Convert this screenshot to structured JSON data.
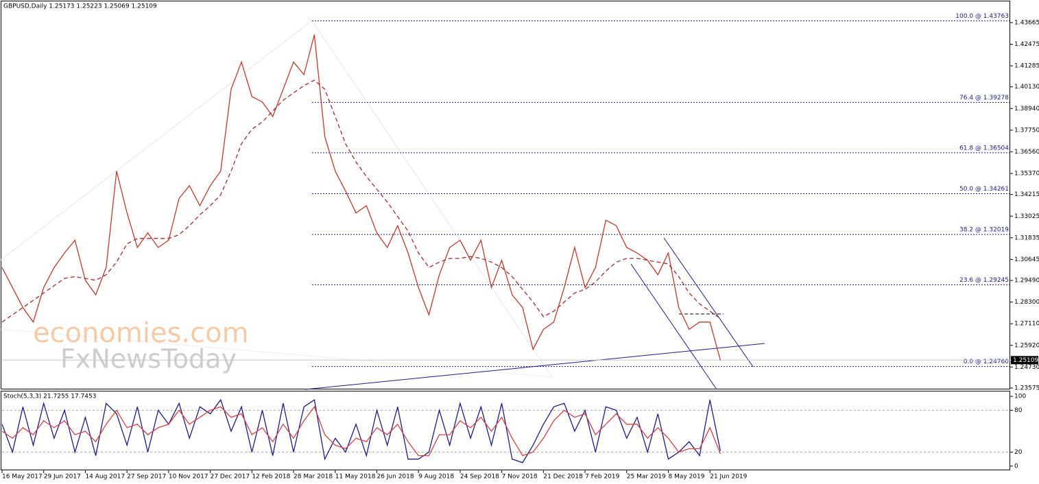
{
  "chart_data": [
    {
      "type": "line",
      "title": "GBPUSD,Daily  1.25173 1.25223 1.25069 1.25109",
      "categories": [
        "16 May 2017",
        null,
        null,
        null,
        "29 Jun 2017",
        null,
        null,
        null,
        "14 Aug 2017",
        null,
        null,
        null,
        "27 Sep 2017",
        null,
        null,
        null,
        "10 Nov 2017",
        null,
        null,
        null,
        "27 Dec 2017",
        null,
        null,
        null,
        "12 Feb 2018",
        null,
        null,
        null,
        "28 Mar 2018",
        null,
        null,
        null,
        "11 May 2018",
        null,
        null,
        null,
        "26 Jun 2018",
        null,
        null,
        null,
        "9 Aug 2018",
        null,
        null,
        null,
        "24 Sep 2018",
        null,
        null,
        null,
        "7 Nov 2018",
        null,
        null,
        null,
        "21 Dec 2018",
        null,
        null,
        null,
        "7 Feb 2019",
        null,
        null,
        null,
        "25 Mar 2019",
        null,
        null,
        null,
        "8 May 2019",
        null,
        null,
        null,
        "21 Jun 2019",
        null
      ],
      "series": [
        {
          "color": "#c0392b",
          "values": [
            1.302,
            1.291,
            1.28,
            1.272,
            1.291,
            1.302,
            1.31,
            1.317,
            1.295,
            1.287,
            1.302,
            1.355,
            1.332,
            1.313,
            1.321,
            1.313,
            1.317,
            1.34,
            1.347,
            1.336,
            1.347,
            1.355,
            1.4,
            1.415,
            1.396,
            1.393,
            1.385,
            1.4,
            1.415,
            1.408,
            1.43,
            1.374,
            1.355,
            1.344,
            1.332,
            1.336,
            1.321,
            1.313,
            1.325,
            1.31,
            1.291,
            1.276,
            1.298,
            1.313,
            1.317,
            1.306,
            1.317,
            1.291,
            1.306,
            1.287,
            1.28,
            1.257,
            1.268,
            1.272,
            1.291,
            1.313,
            1.291,
            1.302,
            1.328,
            1.325,
            1.313,
            1.31,
            1.306,
            1.298,
            1.31,
            1.28,
            1.268,
            1.272,
            1.272,
            1.25109
          ]
        },
        {
          "color": "#a52a2a",
          "dashed": true,
          "values": [
            1.272,
            1.276,
            1.28,
            1.284,
            1.288,
            1.292,
            1.296,
            1.297,
            1.296,
            1.295,
            1.298,
            1.305,
            1.315,
            1.318,
            1.318,
            1.318,
            1.318,
            1.32,
            1.325,
            1.331,
            1.336,
            1.342,
            1.355,
            1.37,
            1.378,
            1.382,
            1.388,
            1.394,
            1.398,
            1.402,
            1.405,
            1.4,
            1.385,
            1.37,
            1.36,
            1.352,
            1.345,
            1.338,
            1.33,
            1.322,
            1.31,
            1.302,
            1.305,
            1.307,
            1.307,
            1.308,
            1.307,
            1.305,
            1.302,
            1.297,
            1.29,
            1.283,
            1.275,
            1.278,
            1.283,
            1.288,
            1.29,
            1.294,
            1.3,
            1.305,
            1.307,
            1.307,
            1.306,
            1.305,
            1.304,
            1.297,
            1.288,
            1.282,
            1.278,
            1.274
          ]
        }
      ],
      "ylim": [
        1.235,
        1.4483
      ],
      "yticks": [
        1.43665,
        1.42475,
        1.41285,
        {
          "value": 1.4013,
          "label": "1.40130"
        },
        {
          "value": 1.3894,
          "label": "1.38940"
        },
        {
          "value": 1.3775,
          "label": "1.37750"
        },
        {
          "value": 1.3656,
          "label": "1.36560"
        },
        {
          "value": 1.3537,
          "label": "1.35370"
        },
        1.34215,
        1.33025,
        1.31835,
        1.30645,
        {
          "value": 1.2949,
          "label": "1.29490"
        },
        {
          "value": 1.283,
          "label": "1.28300"
        },
        {
          "value": 1.2711,
          "label": "1.27110"
        },
        {
          "value": 1.2592,
          "label": "1.25920"
        },
        {
          "value": 1.2473,
          "label": "1.24730"
        },
        1.23575
      ],
      "fib_levels": [
        {
          "value": 1.43763,
          "label": "100.0 @ 1.43763"
        },
        {
          "value": 1.39278,
          "label": "76.4 @ 1.39278"
        },
        {
          "value": 1.36504,
          "label": "61.8 @ 1.36504"
        },
        {
          "value": 1.34261,
          "label": "50.0 @ 1.34261"
        },
        {
          "value": 1.32019,
          "label": "38.2 @ 1.32019"
        },
        {
          "value": 1.29245,
          "label": "23.6 @ 1.29245"
        },
        {
          "value": 1.2476,
          "label": "0.0 @ 1.24760"
        }
      ],
      "fib_color": "#1a1a8c",
      "watermarks": [
        "economies.com",
        "FxNewsToday"
      ]
    },
    {
      "type": "line",
      "title": "Stoch(5,3,3) 21.7255 17.7453",
      "series": [
        {
          "color": "#1a1a8c",
          "values": [
            60,
            20,
            85,
            30,
            90,
            40,
            80,
            20,
            70,
            15,
            90,
            75,
            30,
            85,
            20,
            80,
            60,
            90,
            40,
            85,
            75,
            95,
            50,
            85,
            20,
            80,
            15,
            90,
            20,
            85,
            95,
            10,
            40,
            20,
            60,
            15,
            80,
            30,
            85,
            10,
            10,
            20,
            80,
            30,
            90,
            40,
            85,
            30,
            90,
            10,
            5,
            30,
            60,
            85,
            90,
            50,
            80,
            20,
            85,
            80,
            40,
            70,
            20,
            75,
            10,
            20,
            35,
            15,
            95,
            21.7255
          ]
        },
        {
          "color": "#d94040",
          "values": [
            50,
            40,
            55,
            45,
            65,
            55,
            65,
            45,
            50,
            35,
            60,
            80,
            55,
            60,
            45,
            55,
            60,
            80,
            60,
            70,
            80,
            85,
            70,
            75,
            45,
            55,
            35,
            60,
            40,
            65,
            85,
            45,
            30,
            25,
            40,
            35,
            55,
            45,
            60,
            35,
            15,
            15,
            45,
            45,
            65,
            55,
            70,
            50,
            70,
            40,
            15,
            20,
            40,
            65,
            80,
            70,
            75,
            45,
            60,
            75,
            60,
            60,
            40,
            55,
            40,
            20,
            25,
            25,
            55,
            17.7453
          ]
        }
      ],
      "ylim": [
        -6,
        107
      ],
      "yticks": [
        100,
        80,
        20,
        0
      ],
      "levels": [
        80,
        20
      ]
    }
  ]
}
